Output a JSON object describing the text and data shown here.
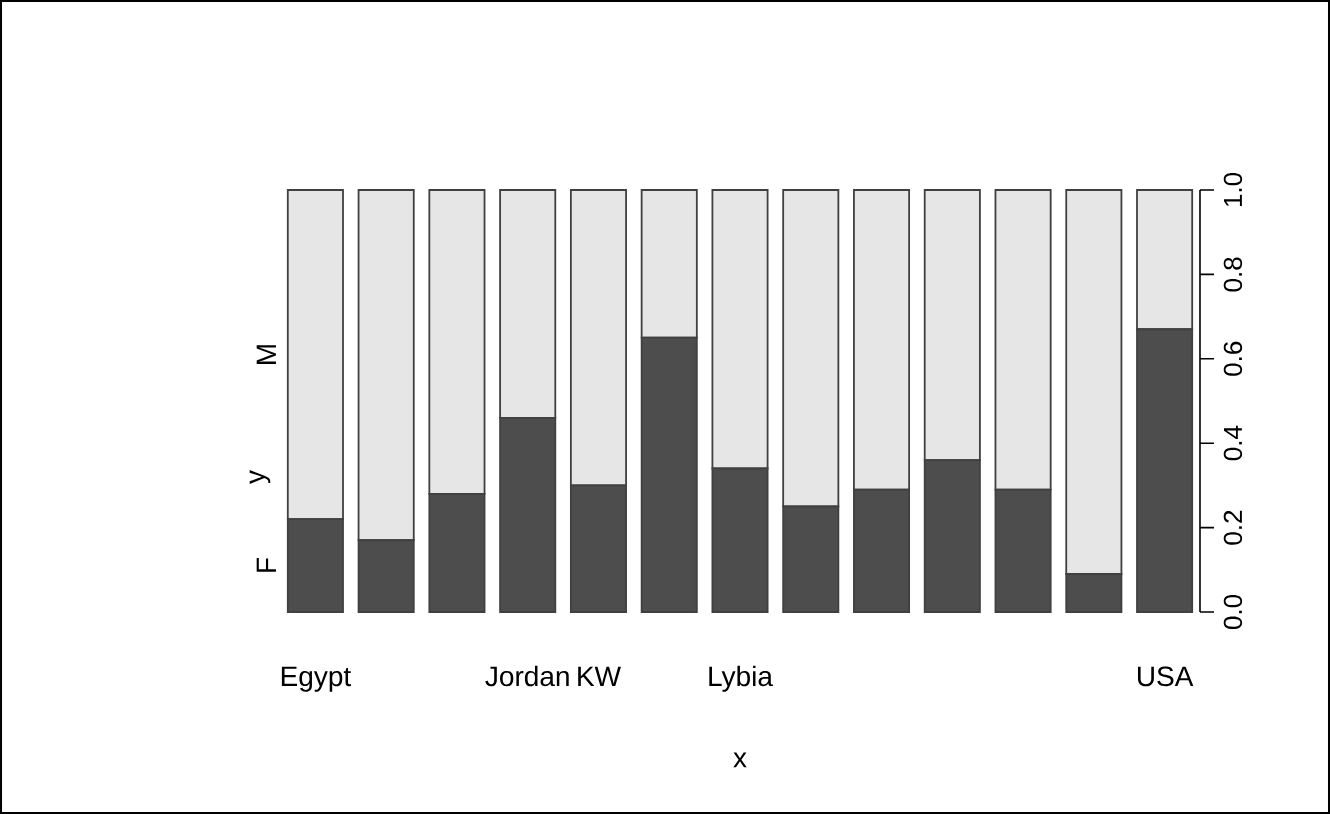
{
  "chart_data": {
    "type": "bar",
    "stacked": true,
    "xlabel": "x",
    "ylabel": "y",
    "categories": [
      "Egypt",
      null,
      null,
      "Jordan",
      "KW",
      null,
      "Lybia",
      null,
      null,
      null,
      null,
      null,
      "USA"
    ],
    "series": [
      {
        "name": "F",
        "color": "#4d4d4d",
        "values": [
          0.22,
          0.17,
          0.28,
          0.46,
          0.3,
          0.65,
          0.34,
          0.25,
          0.29,
          0.36,
          0.29,
          0.09,
          0.67
        ]
      },
      {
        "name": "M",
        "color": "#e6e6e6",
        "values": [
          0.78,
          0.83,
          0.72,
          0.54,
          0.7,
          0.35,
          0.66,
          0.75,
          0.71,
          0.64,
          0.71,
          0.91,
          0.33
        ]
      }
    ],
    "ylim": [
      0,
      1
    ],
    "yticks": [
      {
        "value": 0,
        "label": "0.0"
      },
      0.2,
      0.4,
      0.6,
      0.8,
      {
        "value": 1,
        "label": "1.0"
      }
    ]
  }
}
